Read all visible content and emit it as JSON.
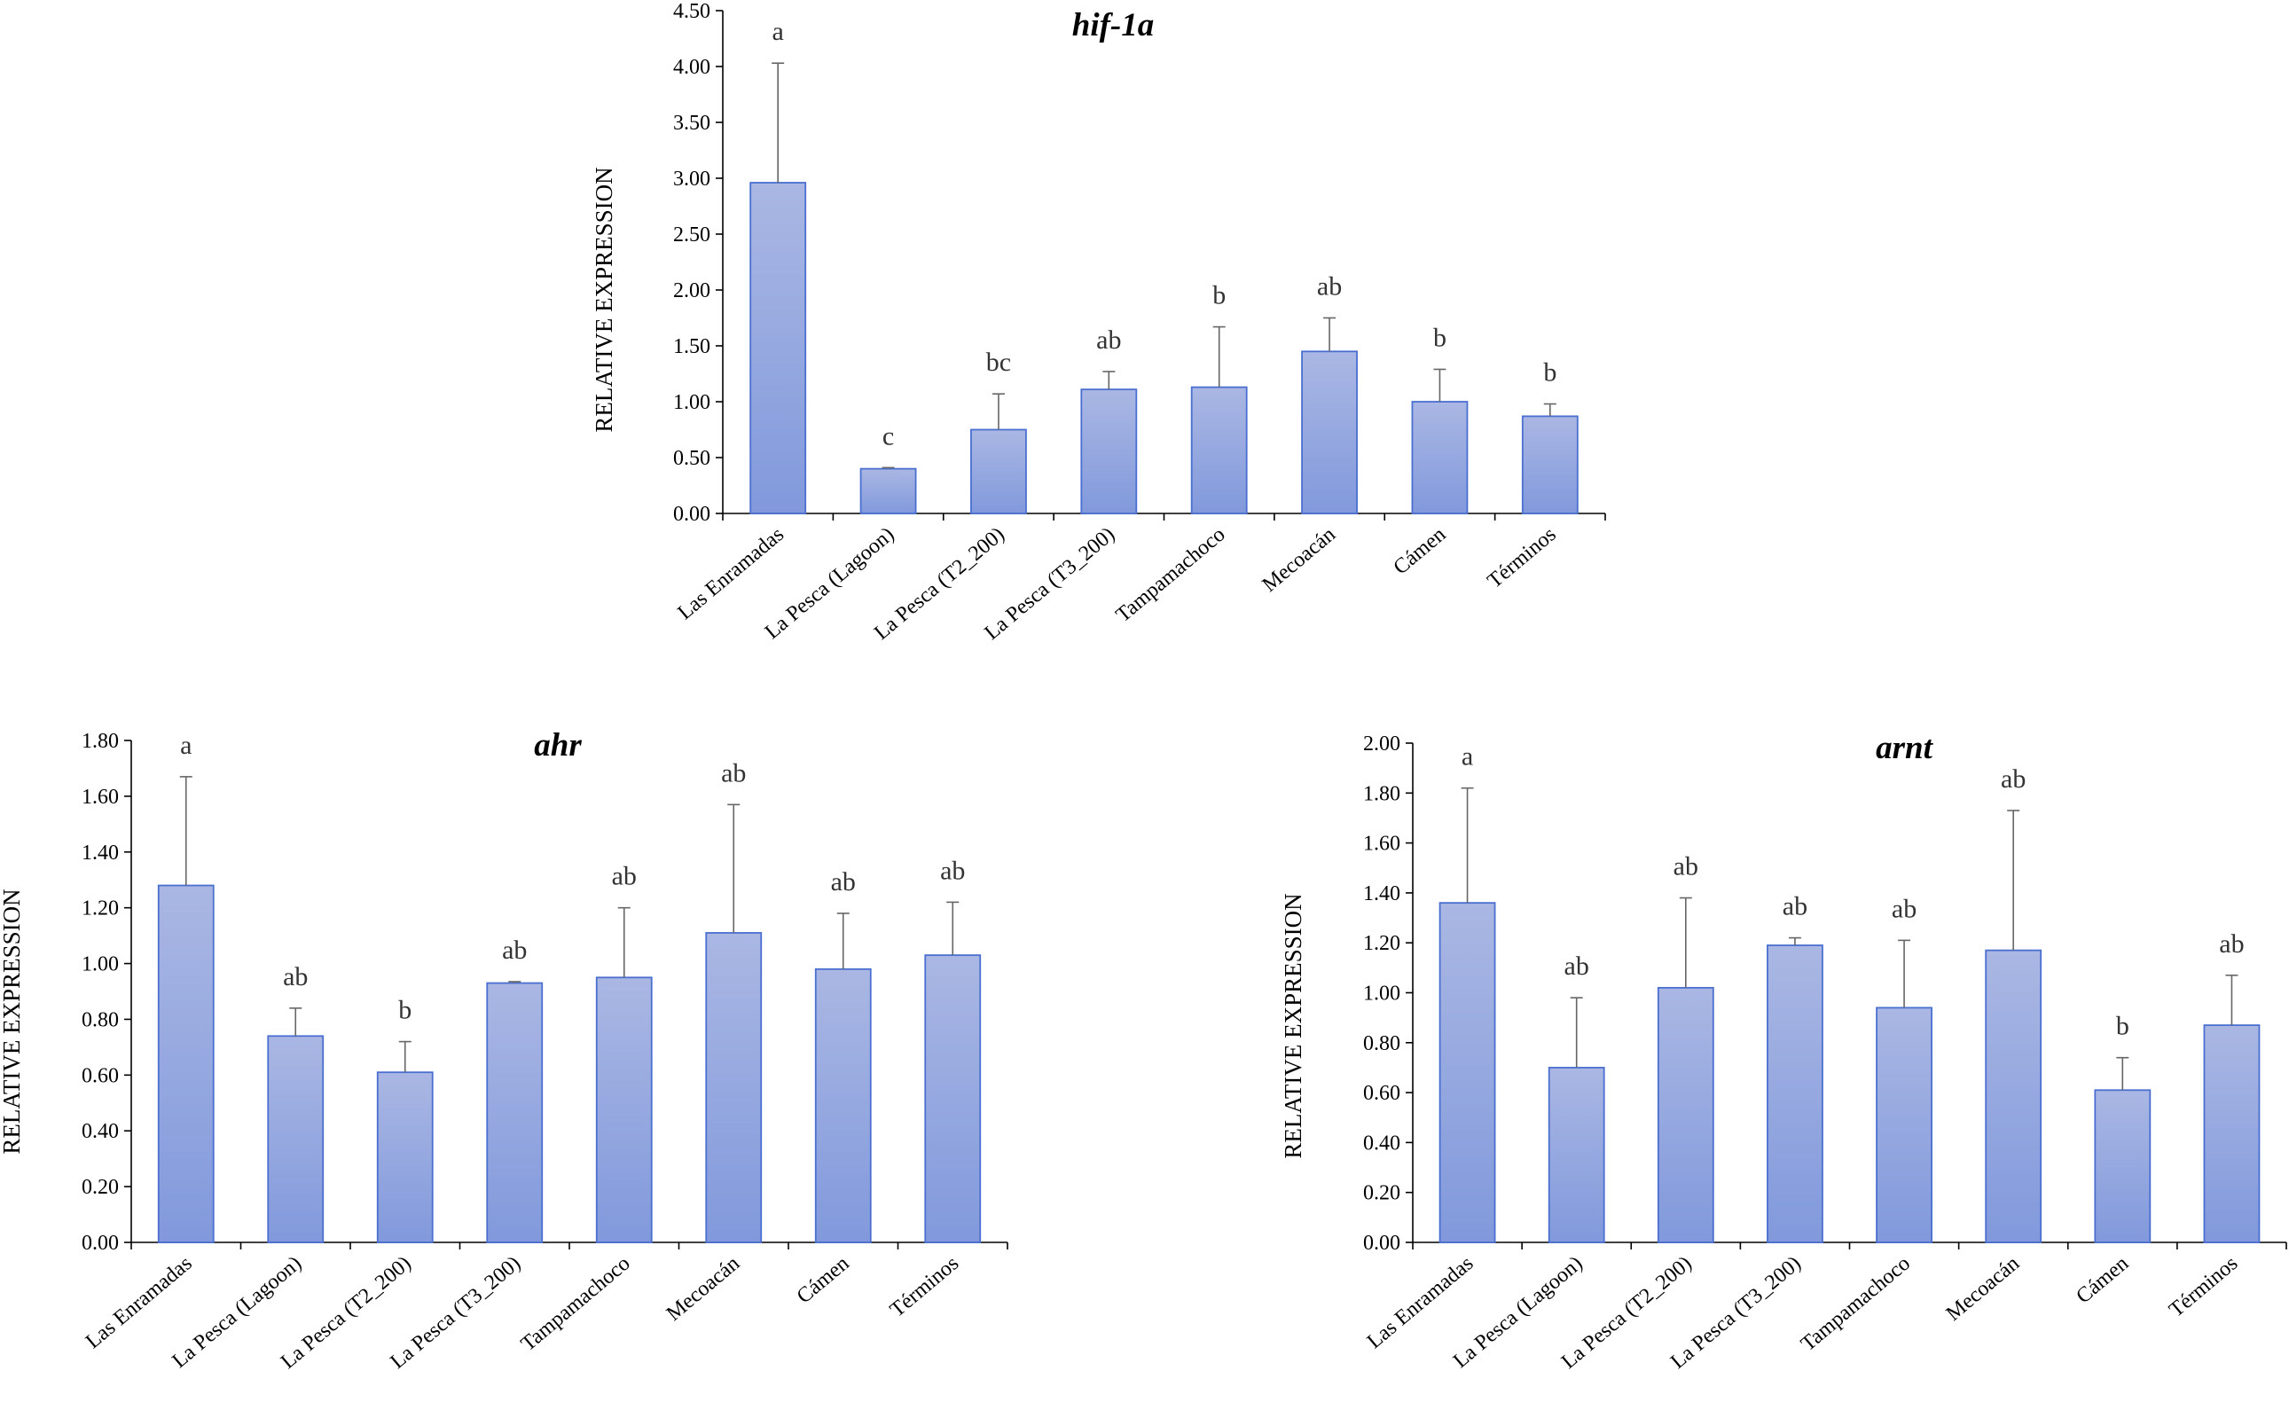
{
  "colors": {
    "bar_top": "#aab7e3",
    "bar_bottom": "#8199dc",
    "bar_edge": "#4a6fd0",
    "error_bar": "#666666",
    "axis": "#000000"
  },
  "chart_data": [
    {
      "id": "hif",
      "type": "bar",
      "title": "hif-1a",
      "ylabel": "RELATIVE EXPRESSION",
      "xlabel": "",
      "ylim": [
        0,
        4.5
      ],
      "yticks": [
        "0.00",
        "0.50",
        "1.00",
        "1.50",
        "2.00",
        "2.50",
        "3.00",
        "3.50",
        "4.00",
        "4.50"
      ],
      "categories": [
        "Las Enramadas",
        "La Pesca (Lagoon)",
        "La Pesca (T2_200)",
        "La Pesca (T3_200)",
        "Tampamachoco",
        "Mecoacán",
        "Cámen",
        "Términos"
      ],
      "values": [
        2.96,
        0.4,
        0.75,
        1.11,
        1.13,
        1.45,
        1.0,
        0.87
      ],
      "errors": [
        1.07,
        0.01,
        0.32,
        0.16,
        0.54,
        0.3,
        0.29,
        0.11
      ],
      "letters": [
        "a",
        "c",
        "bc",
        "ab",
        "b",
        "ab",
        "b",
        "b"
      ]
    },
    {
      "id": "ahr",
      "type": "bar",
      "title": "ahr",
      "ylabel": "RELATIVE EXPRESSION",
      "xlabel": "",
      "ylim": [
        0,
        1.8
      ],
      "yticks": [
        "0.00",
        "0.20",
        "0.40",
        "0.60",
        "0.80",
        "1.00",
        "1.20",
        "1.40",
        "1.60",
        "1.80"
      ],
      "categories": [
        "Las Enramadas",
        "La Pesca (Lagoon)",
        "La Pesca (T2_200)",
        "La Pesca (T3_200)",
        "Tampamachoco",
        "Mecoacán",
        "Cámen",
        "Términos"
      ],
      "values": [
        1.28,
        0.74,
        0.61,
        0.93,
        0.95,
        1.11,
        0.98,
        1.03
      ],
      "errors": [
        0.39,
        0.1,
        0.11,
        0.005,
        0.25,
        0.46,
        0.2,
        0.19
      ],
      "letters": [
        "a",
        "ab",
        "b",
        "ab",
        "ab",
        "ab",
        "ab",
        "ab"
      ]
    },
    {
      "id": "arnt",
      "type": "bar",
      "title": "arnt",
      "ylabel": "RELATIVE EXPRESSION",
      "xlabel": "",
      "ylim": [
        0,
        2.0
      ],
      "yticks": [
        "0.00",
        "0.20",
        "0.40",
        "0.60",
        "0.80",
        "1.00",
        "1.20",
        "1.40",
        "1.60",
        "1.80",
        "2.00"
      ],
      "categories": [
        "Las Enramadas",
        "La Pesca (Lagoon)",
        "La Pesca (T2_200)",
        "La Pesca (T3_200)",
        "Tampamachoco",
        "Mecoacán",
        "Cámen",
        "Términos"
      ],
      "values": [
        1.36,
        0.7,
        1.02,
        1.19,
        0.94,
        1.17,
        0.61,
        0.87
      ],
      "errors": [
        0.46,
        0.28,
        0.36,
        0.03,
        0.27,
        0.56,
        0.13,
        0.2
      ],
      "letters": [
        "a",
        "ab",
        "ab",
        "ab",
        "ab",
        "ab",
        "b",
        "ab"
      ]
    }
  ]
}
